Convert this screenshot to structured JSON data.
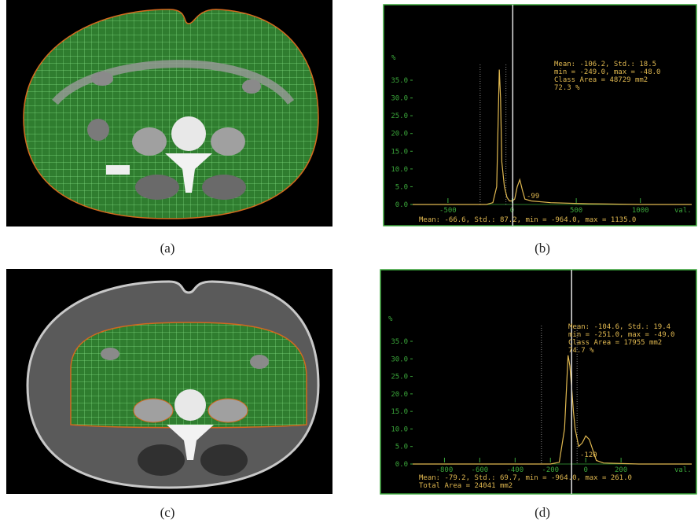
{
  "panels": [
    {
      "label": "(a)"
    },
    {
      "label": "(b)",
      "histogram": {
        "y_unit": "%",
        "x_unit": "val.",
        "xlim": [
          -775,
          1400
        ],
        "ylim": [
          0,
          35
        ],
        "xticks": [
          -500,
          0,
          500,
          1000
        ],
        "yticks": [
          {
            "value": 0,
            "label": "0.0"
          },
          {
            "value": 5,
            "label": "5.0"
          },
          {
            "value": 10,
            "label": "10.0"
          },
          {
            "value": 15,
            "label": "15.0"
          },
          {
            "value": 20,
            "label": "20.0"
          },
          {
            "value": 25,
            "label": "25.0"
          },
          {
            "value": 30,
            "label": "30.0"
          },
          {
            "value": 35,
            "label": "35.0"
          }
        ],
        "curve": {
          "x": [
            -775,
            -300,
            -200,
            -150,
            -120,
            -100,
            -90,
            -80,
            -60,
            -40,
            -20,
            0,
            20,
            40,
            60,
            80,
            100,
            150,
            300,
            600,
            1000,
            1400
          ],
          "values": [
            0,
            0,
            0,
            0.5,
            5,
            38,
            30,
            12,
            5,
            2,
            1,
            1,
            1.5,
            5,
            7,
            4,
            1.5,
            1,
            0.5,
            0.2,
            0,
            0
          ]
        },
        "cursor": 5,
        "class_range": [
          -249,
          -48
        ],
        "marker_label": "-99",
        "stats": [
          "Mean: -106.2, Std.: 18.5",
          "min = -249.0, max = -48.0",
          "Class Area = 48729 mm2",
          "72.3 %"
        ],
        "footer": [
          "Mean: -66.6, Std.: 87.2, min = -964.0, max = 1135.0"
        ]
      }
    },
    {
      "label": "(c)"
    },
    {
      "label": "(d)",
      "histogram": {
        "y_unit": "%",
        "x_unit": "val.",
        "xlim": [
          -980,
          600
        ],
        "ylim": [
          0,
          35
        ],
        "xticks": [
          -800,
          -600,
          -400,
          -200,
          0,
          200
        ],
        "yticks": [
          {
            "value": 0,
            "label": "0.0"
          },
          {
            "value": 5,
            "label": "5.0"
          },
          {
            "value": 10,
            "label": "10.0"
          },
          {
            "value": 15,
            "label": "15.0"
          },
          {
            "value": 20,
            "label": "20.0"
          },
          {
            "value": 25,
            "label": "25.0"
          },
          {
            "value": 30,
            "label": "30.0"
          },
          {
            "value": 35,
            "label": "35.0"
          }
        ],
        "curve": {
          "x": [
            -980,
            -300,
            -200,
            -150,
            -120,
            -100,
            -90,
            -80,
            -70,
            -60,
            -40,
            -20,
            0,
            20,
            40,
            60,
            100,
            300,
            600
          ],
          "values": [
            0,
            0,
            0,
            0.5,
            10,
            31,
            28,
            22,
            15,
            10,
            5,
            6,
            8,
            7,
            4,
            1,
            0.3,
            0,
            0
          ]
        },
        "cursor": -80,
        "class_range": [
          -251,
          -49
        ],
        "marker_label": "-120",
        "stats": [
          "Mean: -104.6, Std.: 19.4",
          "min = -251.0, max = -49.0",
          "Class Area = 17955 mm2",
          "74.7 %"
        ],
        "footer": [
          "Mean: -79.2, Std.: 69.7, min = -964.0, max = 261.0",
          "Total Area = 24041 mm2"
        ]
      }
    }
  ]
}
